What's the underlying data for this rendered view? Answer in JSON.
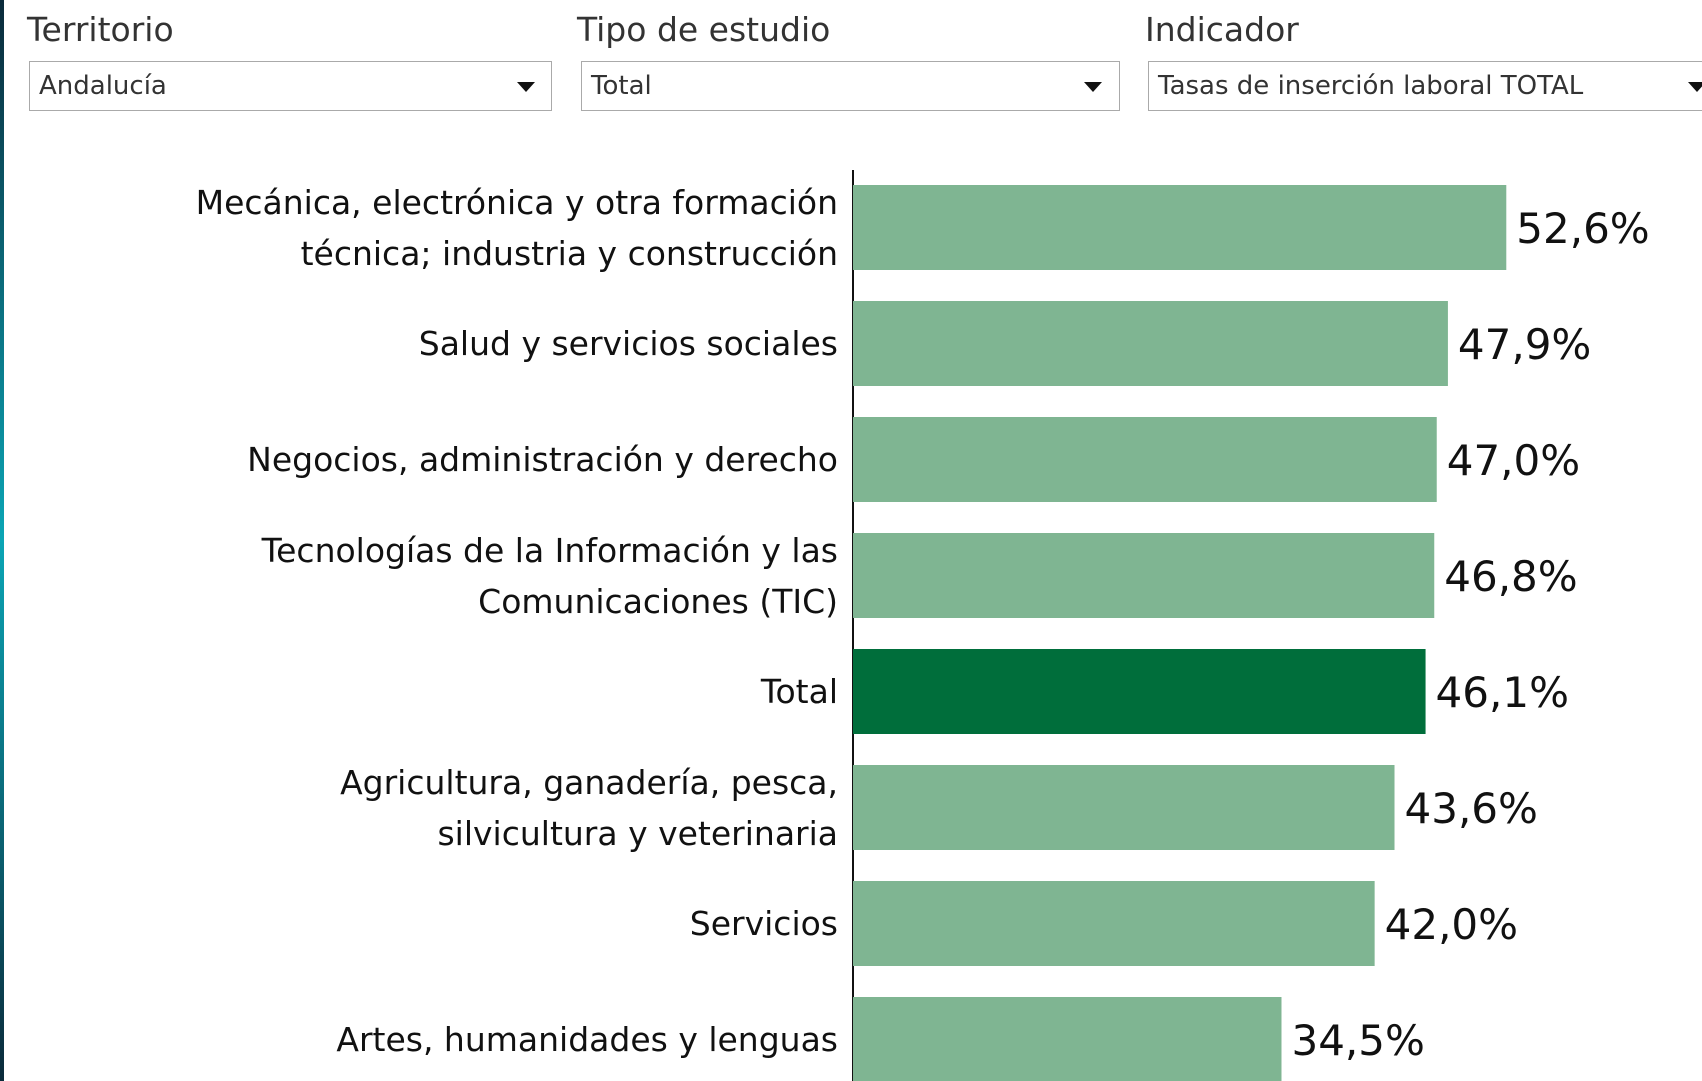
{
  "filters": [
    {
      "label": "Territorio",
      "value": "Andalucía"
    },
    {
      "label": "Tipo de estudio",
      "value": "Total"
    },
    {
      "label": "Indicador",
      "value": "Tasas de inserción laboral TOTAL"
    }
  ],
  "chart_data": {
    "type": "bar",
    "orientation": "horizontal",
    "categories": [
      "Mecánica, electrónica y otra formación\ntécnica; industria y construcción",
      "Salud y servicios sociales",
      "Negocios, administración y derecho",
      "Tecnologías de la Información y las\nComunicaciones (TIC)",
      "Total",
      "Agricultura, ganadería, pesca,\nsilvicultura y veterinaria",
      "Servicios",
      "Artes, humanidades y lenguas"
    ],
    "values": [
      52.6,
      47.9,
      47.0,
      46.8,
      46.1,
      43.6,
      42.0,
      34.5
    ],
    "value_labels": [
      "52,6%",
      "47,9%",
      "47,0%",
      "46,8%",
      "46,1%",
      "43,6%",
      "42,0%",
      "34,5%"
    ],
    "colors": [
      "#7fb592",
      "#7fb592",
      "#7fb592",
      "#7fb592",
      "#006e3b",
      "#7fb592",
      "#7fb592",
      "#7fb592"
    ]
  }
}
